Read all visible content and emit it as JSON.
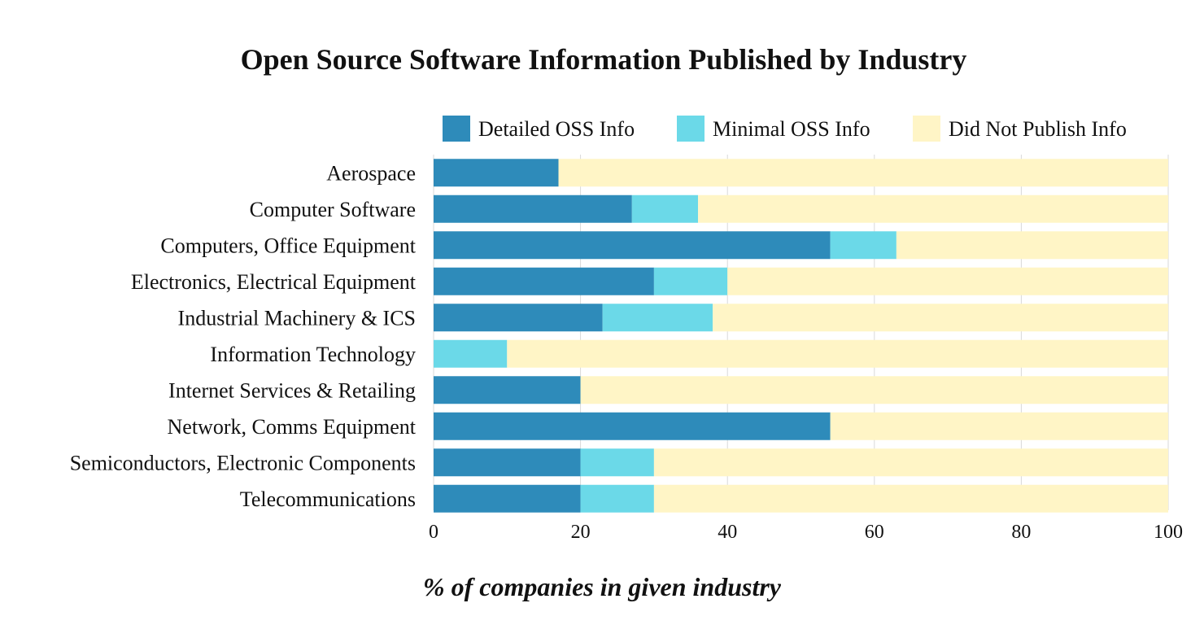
{
  "chart_data": {
    "type": "bar",
    "orientation": "horizontal",
    "stacked": true,
    "title": "Open Source Software Information Published by Industry",
    "xlabel": "% of companies in given industry",
    "ylabel": "",
    "xlim": [
      0,
      100
    ],
    "xticks": [
      0,
      20,
      40,
      60,
      80,
      100
    ],
    "grid": true,
    "legend_position": "top-right",
    "categories": [
      "Aerospace",
      "Computer Software",
      "Computers, Office Equipment",
      "Electronics, Electrical Equipment",
      "Industrial Machinery & ICS",
      "Information Technology",
      "Internet Services & Retailing",
      "Network, Comms Equipment",
      "Semiconductors, Electronic Components",
      "Telecommunications"
    ],
    "series": [
      {
        "name": "Detailed OSS Info",
        "color": "#2e8bba",
        "values": [
          17,
          27,
          54,
          30,
          23,
          0,
          20,
          54,
          20,
          20
        ]
      },
      {
        "name": "Minimal OSS Info",
        "color": "#6bd9e8",
        "values": [
          0,
          9,
          9,
          10,
          15,
          10,
          0,
          0,
          10,
          10
        ]
      },
      {
        "name": "Did Not Publish Info",
        "color": "#fff5c6",
        "values": [
          83,
          64,
          37,
          60,
          62,
          90,
          80,
          46,
          70,
          70
        ]
      }
    ]
  }
}
